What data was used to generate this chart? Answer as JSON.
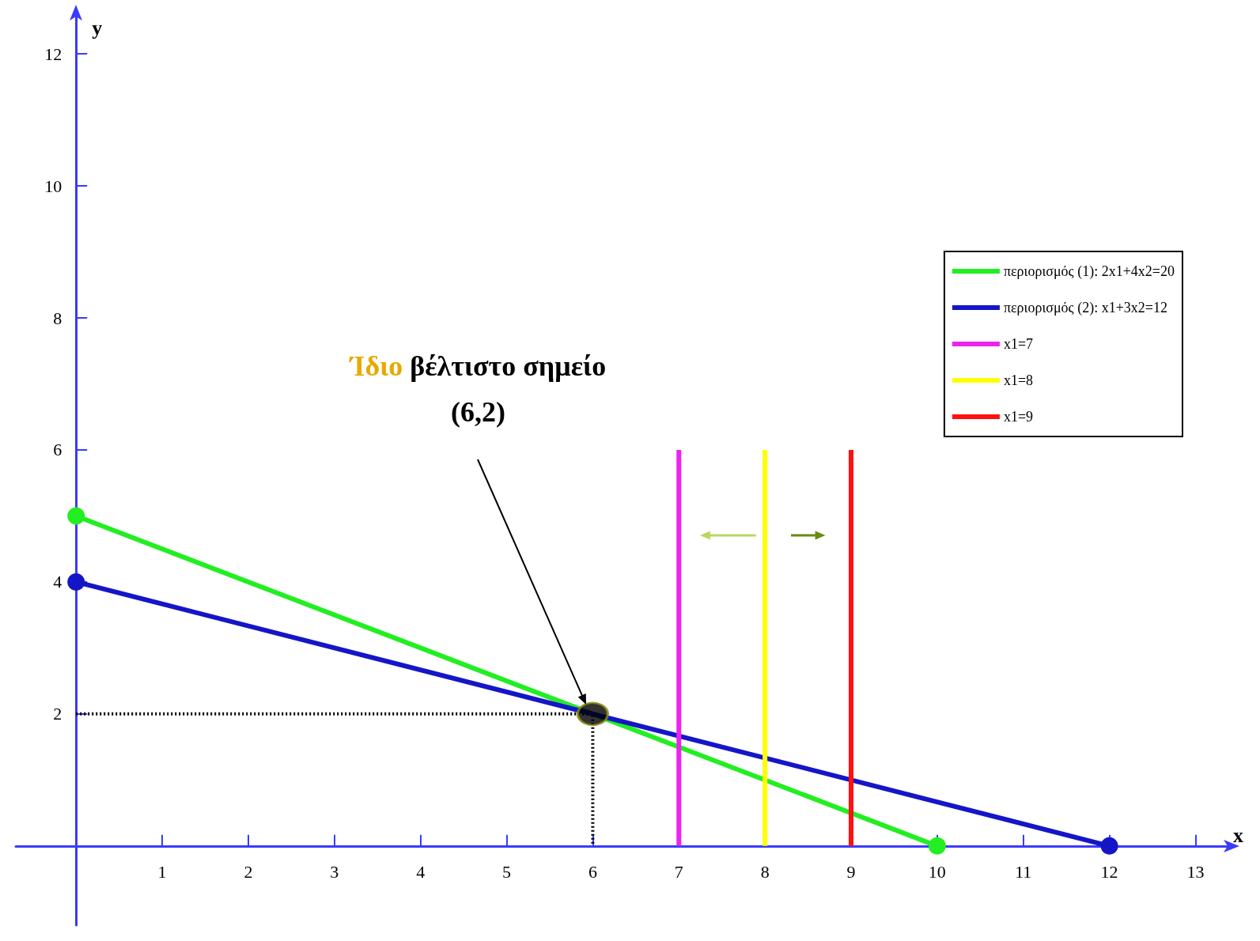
{
  "chart_data": {
    "type": "line",
    "xlabel": "x",
    "ylabel": "y",
    "xlim": [
      -0.7,
      13.4
    ],
    "ylim": [
      -1.2,
      12.6
    ],
    "xticks": [
      1,
      2,
      3,
      4,
      5,
      6,
      7,
      8,
      9,
      10,
      11,
      12,
      13
    ],
    "yticks": [
      2,
      4,
      6,
      8,
      10,
      12
    ],
    "grid": false,
    "legend": "top right",
    "series": [
      {
        "name": "περιορισμός (1): 2x1+4x2=20",
        "color": "#22ee22",
        "x": [
          0,
          10
        ],
        "values": [
          5,
          0
        ],
        "marker": "circle"
      },
      {
        "name": "περιορισμός (2): x1+3x2=12",
        "color": "#1515c8",
        "x": [
          0,
          12
        ],
        "values": [
          4,
          0
        ],
        "marker": "circle"
      },
      {
        "name": "x1=7",
        "color": "#ee22ee",
        "x": [
          7,
          7
        ],
        "values": [
          0,
          6
        ],
        "marker": "none"
      },
      {
        "name": "x1=8",
        "color": "#ffff00",
        "x": [
          8,
          8
        ],
        "values": [
          0,
          6
        ],
        "marker": "none"
      },
      {
        "name": "x1=9",
        "color": "#ff1111",
        "x": [
          9,
          9
        ],
        "values": [
          0,
          6
        ],
        "marker": "none"
      },
      {
        "color": "#000000",
        "x": [
          0,
          6,
          6
        ],
        "values": [
          2,
          2,
          0
        ],
        "marker": "none",
        "line_style": "dotted"
      },
      {
        "type": "scatter",
        "color": "#000000",
        "x": [
          6
        ],
        "values": [
          2
        ],
        "marker": "circle"
      }
    ],
    "annotations": [
      "Ίδιο βέλτιστο σημείο\n(6,2)"
    ]
  }
}
